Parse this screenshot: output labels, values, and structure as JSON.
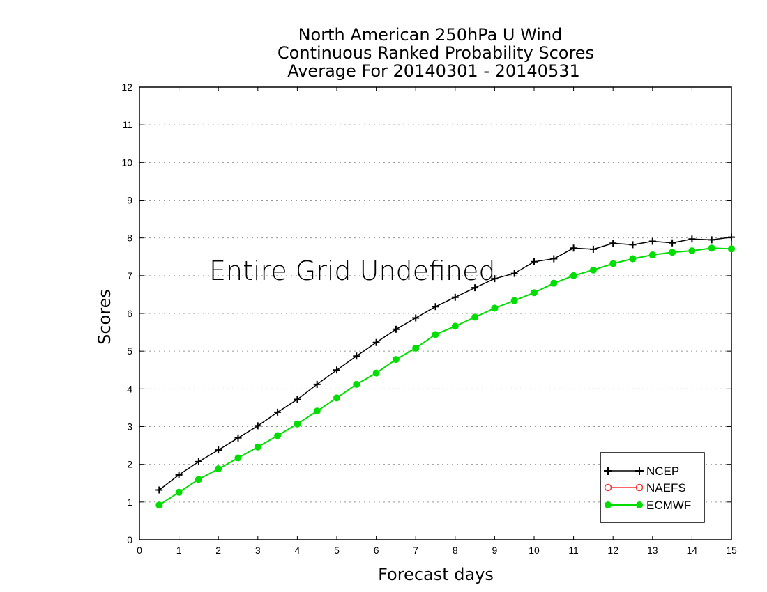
{
  "chart_data": {
    "type": "line",
    "title": [
      "North American 250hPa U Wind",
      "Continuous Ranked Probability Scores",
      "Average For 20140301 - 20140531"
    ],
    "xlabel": "Forecast days",
    "ylabel": "Scores",
    "xlim": [
      0,
      15
    ],
    "ylim": [
      0,
      12
    ],
    "xticks": [
      "0",
      "1",
      "2",
      "3",
      "4",
      "5",
      "6",
      "7",
      "8",
      "9",
      "10",
      "11",
      "12",
      "13",
      "14",
      "15"
    ],
    "yticks": [
      "0",
      "1",
      "2",
      "3",
      "4",
      "5",
      "6",
      "7",
      "8",
      "9",
      "10",
      "11",
      "12"
    ],
    "grid": true,
    "legend_position": "bottom-right",
    "annotation": "Entire Grid Undefined",
    "series": [
      {
        "name": "NCEP",
        "color": "#000000",
        "marker": "plus",
        "x": [
          0.5,
          1,
          1.5,
          2,
          2.5,
          3,
          3.5,
          4,
          4.5,
          5,
          5.5,
          6,
          6.5,
          7,
          7.5,
          8,
          8.5,
          9,
          9.5,
          10,
          10.5,
          11,
          11.5,
          12,
          12.5,
          13,
          13.5,
          14,
          14.5,
          15
        ],
        "values": [
          1.32,
          1.72,
          2.07,
          2.38,
          2.7,
          3.02,
          3.38,
          3.72,
          4.12,
          4.5,
          4.87,
          5.23,
          5.58,
          5.88,
          6.18,
          6.43,
          6.68,
          6.92,
          7.06,
          7.37,
          7.45,
          7.73,
          7.7,
          7.86,
          7.82,
          7.91,
          7.87,
          7.97,
          7.95,
          8.02
        ]
      },
      {
        "name": "NAEFS",
        "color": "#ff3030",
        "marker": "open-circle",
        "x": [],
        "values": []
      },
      {
        "name": "ECMWF",
        "color": "#00dd00",
        "marker": "filled-circle",
        "x": [
          0.5,
          1,
          1.5,
          2,
          2.5,
          3,
          3.5,
          4,
          4.5,
          5,
          5.5,
          6,
          6.5,
          7,
          7.5,
          8,
          8.5,
          9,
          9.5,
          10,
          10.5,
          11,
          11.5,
          12,
          12.5,
          13,
          13.5,
          14,
          14.5,
          15
        ],
        "values": [
          0.92,
          1.26,
          1.6,
          1.88,
          2.17,
          2.46,
          2.76,
          3.07,
          3.41,
          3.76,
          4.12,
          4.42,
          4.78,
          5.08,
          5.44,
          5.66,
          5.9,
          6.14,
          6.34,
          6.55,
          6.8,
          7.0,
          7.15,
          7.32,
          7.45,
          7.55,
          7.62,
          7.66,
          7.73,
          7.71
        ]
      }
    ]
  }
}
